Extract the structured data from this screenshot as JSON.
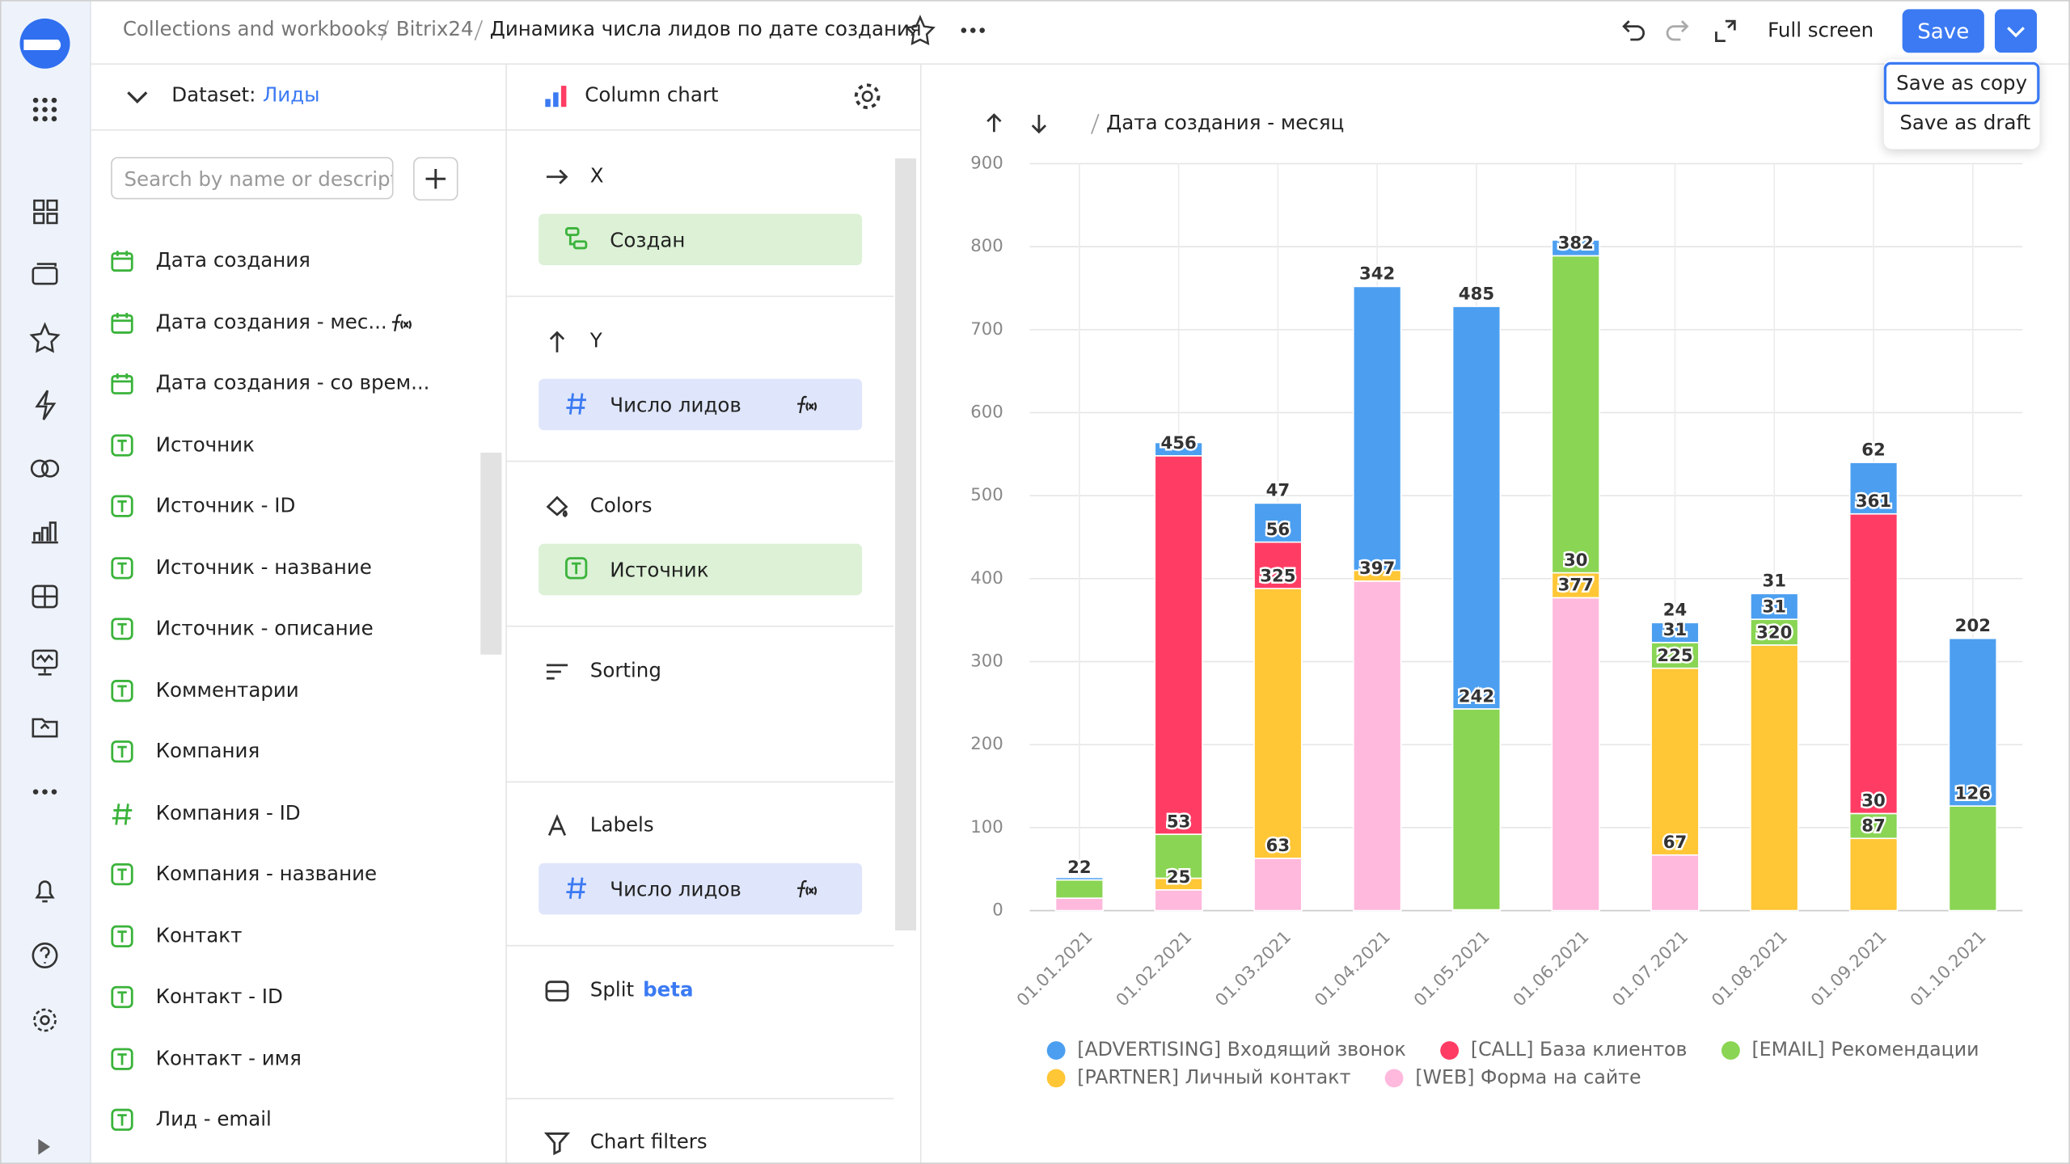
{
  "header": {
    "breadcrumbs": [
      "Collections and workbooks",
      "Bitrix24"
    ],
    "title": "Динамика числа лидов по дате создания",
    "full_screen": "Full screen",
    "save": "Save",
    "menu": [
      "Save as copy",
      "Save as draft"
    ]
  },
  "dataset": {
    "label": "Dataset:",
    "name": "Лиды",
    "search_placeholder": "Search by name or descript",
    "fields": [
      {
        "icon": "date",
        "name": "Дата создания"
      },
      {
        "icon": "date",
        "name": "Дата создания - мес...",
        "formula": true
      },
      {
        "icon": "date",
        "name": "Дата создания - со врем..."
      },
      {
        "icon": "text",
        "name": "Источник"
      },
      {
        "icon": "text",
        "name": "Источник - ID"
      },
      {
        "icon": "text",
        "name": "Источник - название"
      },
      {
        "icon": "text",
        "name": "Источник - описание"
      },
      {
        "icon": "text",
        "name": "Комментарии"
      },
      {
        "icon": "text",
        "name": "Компания"
      },
      {
        "icon": "number",
        "name": "Компания - ID"
      },
      {
        "icon": "text",
        "name": "Компания - название"
      },
      {
        "icon": "text",
        "name": "Контакт"
      },
      {
        "icon": "text",
        "name": "Контакт - ID"
      },
      {
        "icon": "text",
        "name": "Контакт - имя"
      },
      {
        "icon": "text",
        "name": "Лид - email"
      }
    ]
  },
  "wizard": {
    "chart_type": "Column chart",
    "sections": [
      {
        "title": "X",
        "icon": "x",
        "item": {
          "icon": "tree",
          "name": "Создан",
          "kind": "dimension"
        }
      },
      {
        "title": "Y",
        "icon": "y",
        "item": {
          "icon": "number",
          "name": "Число лидов",
          "kind": "measure",
          "formula": true
        }
      },
      {
        "title": "Colors",
        "icon": "colors",
        "item": {
          "icon": "text",
          "name": "Источник",
          "kind": "dimension"
        }
      },
      {
        "title": "Sorting",
        "icon": "sorting"
      },
      {
        "title": "Labels",
        "icon": "labels",
        "item": {
          "icon": "number",
          "name": "Число лидов",
          "kind": "measure",
          "formula": true
        }
      },
      {
        "title": "Split",
        "icon": "split",
        "tag": "beta"
      },
      {
        "title": "Chart filters",
        "icon": "filters"
      }
    ]
  },
  "chart_data": {
    "type": "bar",
    "stacked": true,
    "drill_path": "Дата создания - месяц",
    "categories": [
      "01.01.2021",
      "01.02.2021",
      "01.03.2021",
      "01.04.2021",
      "01.05.2021",
      "01.06.2021",
      "01.07.2021",
      "01.08.2021",
      "01.09.2021",
      "01.10.2021"
    ],
    "series": [
      {
        "name": "[ADVERTISING] Входящий звонок",
        "color": "#4c9ff0",
        "values": [
          3,
          16,
          47,
          342,
          485,
          19,
          24,
          31,
          62,
          202
        ]
      },
      {
        "name": "[CALL] База клиентов",
        "color": "#ff3d64",
        "values": [
          null,
          456,
          56,
          null,
          null,
          null,
          null,
          null,
          361,
          null
        ]
      },
      {
        "name": "[EMAIL] Рекомендации",
        "color": "#8ad554",
        "values": [
          22,
          53,
          null,
          null,
          242,
          382,
          31,
          31,
          30,
          126
        ]
      },
      {
        "name": "[PARTNER] Личный контакт",
        "color": "#ffc636",
        "values": [
          null,
          14,
          325,
          13,
          null,
          30,
          225,
          320,
          87,
          null
        ]
      },
      {
        "name": "[WEB] Форма на сайте",
        "color": "#ffb9dd",
        "values": [
          15,
          25,
          63,
          397,
          1,
          377,
          67,
          null,
          null,
          null
        ]
      }
    ],
    "ylim": [
      0,
      900
    ],
    "yticks": [
      0,
      100,
      200,
      300,
      400,
      500,
      600,
      700,
      800,
      900
    ],
    "grid": true,
    "legend": "bottom"
  }
}
